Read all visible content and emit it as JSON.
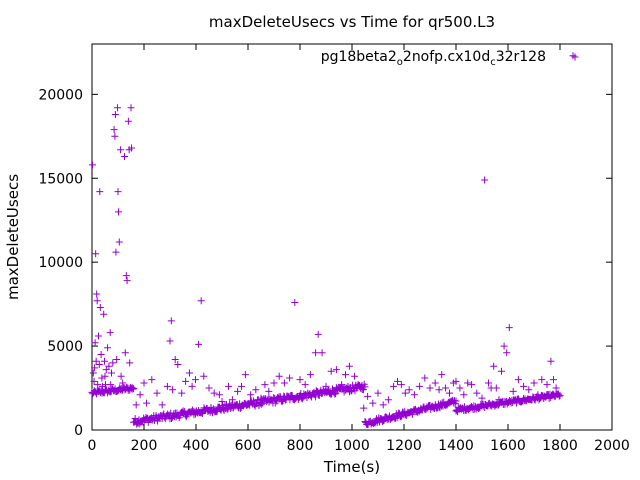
{
  "chart_data": {
    "type": "scatter",
    "title": "maxDeleteUsecs vs Time for qr500.L3",
    "xlabel": "Time(s)",
    "ylabel": "maxDeleteUsecs",
    "xlim": [
      0,
      2000
    ],
    "ylim": [
      0,
      23000
    ],
    "x_ticks": [
      0,
      200,
      400,
      600,
      800,
      1000,
      1200,
      1400,
      1600,
      1800,
      2000
    ],
    "y_ticks": [
      0,
      5000,
      10000,
      15000,
      20000
    ],
    "grid": false,
    "legend_position": "top-right",
    "marker": "+",
    "series": [
      {
        "name": "pg18beta2_o2nofp.cx10d_c32r128",
        "name_parts": [
          {
            "text": "pg18beta2",
            "sub": false
          },
          {
            "text": "o",
            "sub": true
          },
          {
            "text": "2nofp.cx10d",
            "sub": false
          },
          {
            "text": "c",
            "sub": true
          },
          {
            "text": "32r128",
            "sub": false
          }
        ],
        "color": "#9400d3",
        "outliers": [
          [
            2,
            15800
          ],
          [
            5,
            3400
          ],
          [
            8,
            2900
          ],
          [
            10,
            3700
          ],
          [
            12,
            5200
          ],
          [
            14,
            10500
          ],
          [
            16,
            4100
          ],
          [
            18,
            8100
          ],
          [
            20,
            7700
          ],
          [
            22,
            2700
          ],
          [
            25,
            5600
          ],
          [
            28,
            3900
          ],
          [
            30,
            14200
          ],
          [
            32,
            7300
          ],
          [
            35,
            4500
          ],
          [
            38,
            3100
          ],
          [
            40,
            2600
          ],
          [
            45,
            6900
          ],
          [
            48,
            4100
          ],
          [
            50,
            3200
          ],
          [
            52,
            2700
          ],
          [
            55,
            3600
          ],
          [
            60,
            4900
          ],
          [
            65,
            3800
          ],
          [
            70,
            5800
          ],
          [
            72,
            2700
          ],
          [
            75,
            3400
          ],
          [
            80,
            4000
          ],
          [
            85,
            17900
          ],
          [
            88,
            17500
          ],
          [
            90,
            18800
          ],
          [
            92,
            10600
          ],
          [
            95,
            4200
          ],
          [
            98,
            19200
          ],
          [
            100,
            14200
          ],
          [
            102,
            13000
          ],
          [
            105,
            11200
          ],
          [
            110,
            16700
          ],
          [
            112,
            3200
          ],
          [
            118,
            2800
          ],
          [
            125,
            16300
          ],
          [
            128,
            4600
          ],
          [
            132,
            9200
          ],
          [
            135,
            8900
          ],
          [
            140,
            18400
          ],
          [
            143,
            16700
          ],
          [
            145,
            4000
          ],
          [
            150,
            19200
          ],
          [
            152,
            16800
          ],
          [
            170,
            1500
          ],
          [
            185,
            2100
          ],
          [
            200,
            2800
          ],
          [
            210,
            1600
          ],
          [
            230,
            3000
          ],
          [
            250,
            2200
          ],
          [
            270,
            1500
          ],
          [
            290,
            2600
          ],
          [
            300,
            5300
          ],
          [
            305,
            6500
          ],
          [
            310,
            2400
          ],
          [
            320,
            4200
          ],
          [
            330,
            3900
          ],
          [
            345,
            2200
          ],
          [
            360,
            2900
          ],
          [
            375,
            3400
          ],
          [
            385,
            2600
          ],
          [
            398,
            3000
          ],
          [
            410,
            5100
          ],
          [
            420,
            7700
          ],
          [
            430,
            3200
          ],
          [
            450,
            2500
          ],
          [
            470,
            2200
          ],
          [
            490,
            2100
          ],
          [
            500,
            1700
          ],
          [
            525,
            2600
          ],
          [
            540,
            1800
          ],
          [
            560,
            2300
          ],
          [
            575,
            2600
          ],
          [
            590,
            3300
          ],
          [
            610,
            2100
          ],
          [
            630,
            2400
          ],
          [
            650,
            1900
          ],
          [
            665,
            2700
          ],
          [
            680,
            2300
          ],
          [
            700,
            2800
          ],
          [
            720,
            3200
          ],
          [
            740,
            2800
          ],
          [
            760,
            3100
          ],
          [
            780,
            7600
          ],
          [
            800,
            3000
          ],
          [
            820,
            2700
          ],
          [
            840,
            3300
          ],
          [
            860,
            4600
          ],
          [
            870,
            5700
          ],
          [
            885,
            4600
          ],
          [
            900,
            2600
          ],
          [
            920,
            3500
          ],
          [
            940,
            3600
          ],
          [
            960,
            2700
          ],
          [
            975,
            3300
          ],
          [
            990,
            3800
          ],
          [
            1010,
            3200
          ],
          [
            1030,
            2600
          ],
          [
            1045,
            1300
          ],
          [
            1060,
            2000
          ],
          [
            1080,
            1600
          ],
          [
            1100,
            2200
          ],
          [
            1120,
            1500
          ],
          [
            1140,
            1800
          ],
          [
            1160,
            2600
          ],
          [
            1175,
            2900
          ],
          [
            1190,
            2700
          ],
          [
            1205,
            2200
          ],
          [
            1220,
            2400
          ],
          [
            1240,
            2100
          ],
          [
            1260,
            2600
          ],
          [
            1280,
            3100
          ],
          [
            1300,
            2500
          ],
          [
            1320,
            2800
          ],
          [
            1335,
            2400
          ],
          [
            1345,
            3300
          ],
          [
            1360,
            2500
          ],
          [
            1375,
            2200
          ],
          [
            1390,
            2800
          ],
          [
            1400,
            2900
          ],
          [
            1415,
            2500
          ],
          [
            1430,
            2100
          ],
          [
            1445,
            2800
          ],
          [
            1460,
            2700
          ],
          [
            1480,
            2200
          ],
          [
            1500,
            1900
          ],
          [
            1510,
            14900
          ],
          [
            1525,
            2800
          ],
          [
            1535,
            2500
          ],
          [
            1545,
            3800
          ],
          [
            1555,
            2500
          ],
          [
            1565,
            1800
          ],
          [
            1575,
            3500
          ],
          [
            1585,
            5000
          ],
          [
            1595,
            4600
          ],
          [
            1605,
            6100
          ],
          [
            1620,
            2300
          ],
          [
            1640,
            3000
          ],
          [
            1660,
            2600
          ],
          [
            1680,
            2400
          ],
          [
            1700,
            2800
          ],
          [
            1715,
            2100
          ],
          [
            1730,
            3000
          ],
          [
            1750,
            2700
          ],
          [
            1765,
            4100
          ],
          [
            1775,
            3000
          ],
          [
            1785,
            2500
          ],
          [
            1850,
            22300
          ]
        ],
        "baseline_segments": [
          {
            "x_start": 0,
            "x_end": 160,
            "y_start": 2200,
            "y_end": 2500,
            "count": 55,
            "spread": 250
          },
          {
            "x_start": 160,
            "x_end": 1050,
            "y_start": 500,
            "y_end": 2600,
            "count": 300,
            "spread": 380
          },
          {
            "x_start": 1050,
            "x_end": 1400,
            "y_start": 400,
            "y_end": 1700,
            "count": 120,
            "spread": 300
          },
          {
            "x_start": 1400,
            "x_end": 1800,
            "y_start": 1200,
            "y_end": 2100,
            "count": 135,
            "spread": 250
          }
        ]
      }
    ]
  }
}
